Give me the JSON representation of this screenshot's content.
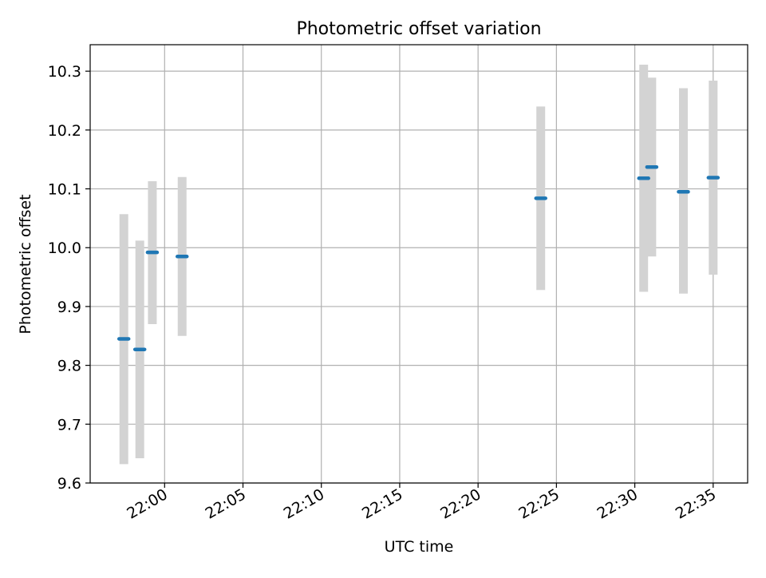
{
  "chart_data": {
    "type": "scatter",
    "title": "Photometric offset variation",
    "xlabel": "UTC time",
    "ylabel": "Photometric offset",
    "x_ticks": [
      "21:59:59",
      "22:04:59",
      "22:09:59",
      "22:14:59",
      "22:19:59",
      "22:24:59",
      "22:29:59",
      "22:34:59"
    ],
    "x_tick_labels": [
      "22:00",
      "22:05",
      "22:10",
      "22:15",
      "22:20",
      "22:25",
      "22:30",
      "22:35"
    ],
    "xlim": [
      "21:55:14",
      "22:37:11"
    ],
    "ylim": [
      9.6,
      10.345
    ],
    "y_ticks": [
      9.6,
      9.7,
      9.8,
      9.9,
      10.0,
      10.1,
      10.2,
      10.3
    ],
    "y_tick_labels": [
      "9.6",
      "9.7",
      "9.8",
      "9.9",
      "10.0",
      "10.1",
      "10.2",
      "10.3"
    ],
    "grid": true,
    "colors": {
      "marker": "#1f77b4",
      "errorbar": "#d3d3d3",
      "grid": "#b0b0b0"
    },
    "points": [
      {
        "x": "21:57:23",
        "y": 9.845,
        "yerr_low": 9.632,
        "yerr_high": 10.057
      },
      {
        "x": "21:58:24",
        "y": 9.827,
        "yerr_low": 9.642,
        "yerr_high": 10.012
      },
      {
        "x": "21:59:12",
        "y": 9.992,
        "yerr_low": 9.87,
        "yerr_high": 10.113
      },
      {
        "x": "22:01:06",
        "y": 9.985,
        "yerr_low": 9.85,
        "yerr_high": 10.12
      },
      {
        "x": "22:23:59",
        "y": 10.084,
        "yerr_low": 9.928,
        "yerr_high": 10.24
      },
      {
        "x": "22:30:33",
        "y": 10.118,
        "yerr_low": 9.925,
        "yerr_high": 10.311
      },
      {
        "x": "22:31:04",
        "y": 10.137,
        "yerr_low": 9.985,
        "yerr_high": 10.289
      },
      {
        "x": "22:33:05",
        "y": 10.095,
        "yerr_low": 9.922,
        "yerr_high": 10.271
      },
      {
        "x": "22:34:59",
        "y": 10.119,
        "yerr_low": 9.954,
        "yerr_high": 10.284
      }
    ]
  }
}
